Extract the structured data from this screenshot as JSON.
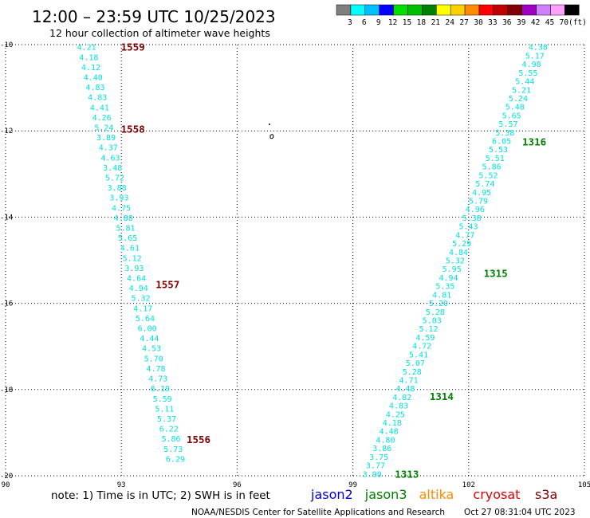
{
  "header": {
    "title": "12:00 – 23:59 UTC 10/25/2023",
    "subtitle": "12 hour collection of altimeter wave heights"
  },
  "legend": {
    "unit": "(ft)",
    "bins": [
      {
        "label": "3",
        "color": "#7f7f7f"
      },
      {
        "label": "6",
        "color": "#00ffff"
      },
      {
        "label": "9",
        "color": "#00bfff"
      },
      {
        "label": "12",
        "color": "#0000ff"
      },
      {
        "label": "15",
        "color": "#00e000"
      },
      {
        "label": "18",
        "color": "#00bf00"
      },
      {
        "label": "21",
        "color": "#008000"
      },
      {
        "label": "24",
        "color": "#ffff00"
      },
      {
        "label": "27",
        "color": "#ffd000"
      },
      {
        "label": "30",
        "color": "#ff8c00"
      },
      {
        "label": "33",
        "color": "#ff0000"
      },
      {
        "label": "36",
        "color": "#c00000"
      },
      {
        "label": "39",
        "color": "#800000"
      },
      {
        "label": "42",
        "color": "#a000c0"
      },
      {
        "label": "45",
        "color": "#d080ff"
      },
      {
        "label": "70",
        "color": "#ffa0ff"
      },
      {
        "label": "",
        "color": "#000000"
      }
    ]
  },
  "footer": {
    "note": "note: 1) Time is in UTC; 2) SWH is in feet",
    "credit": "NOAA/NESDIS Center for Satellite Applications and Research",
    "timestamp": "Oct 27 08:31:04 UTC 2023",
    "satellites": [
      {
        "name": "jason2",
        "color": "#0000dd"
      },
      {
        "name": "jason3",
        "color": "#008000"
      },
      {
        "name": "altika",
        "color": "#ff8c00"
      },
      {
        "name": "cryosat",
        "color": "#e00000"
      },
      {
        "name": "s3a",
        "color": "#800000"
      }
    ]
  },
  "chart_data": {
    "type": "scatter",
    "xlim": [
      90,
      105
    ],
    "ylim": [
      -20,
      -10
    ],
    "x_ticks": [
      "90",
      "93",
      "96",
      "99",
      "102",
      "105"
    ],
    "y_ticks": [
      "-10",
      "-12",
      "-14",
      "-16",
      "-18",
      "-20"
    ],
    "grid": true,
    "value_color": "#00e0e0",
    "tracks": [
      {
        "satellite": "s3a",
        "start": [
          92.1,
          -10.05
        ],
        "end": [
          94.4,
          -19.6
        ],
        "values": [
          "4.21",
          "4.18",
          "4.12",
          "4.40",
          "4.83",
          "4.83",
          "4.41",
          "4.26",
          "5.24",
          "3.89",
          "4.37",
          "4.63",
          "3.48",
          "5.72",
          "3.88",
          "3.93",
          "4.75",
          "4.88",
          "5.81",
          "5.65",
          "4.61",
          "5.12",
          "3.93",
          "4.64",
          "4.94",
          "5.32",
          "4.17",
          "5.64",
          "6.00",
          "4.44",
          "4.53",
          "5.70",
          "4.78",
          "4.73",
          "6.19",
          "5.59",
          "5.11",
          "5.37",
          "6.22",
          "5.86",
          "5.73",
          "6.29"
        ],
        "time_labels": [
          {
            "text": "1559",
            "at": [
              93.3,
              -10.05
            ]
          },
          {
            "text": "1558",
            "at": [
              93.3,
              -11.95
            ]
          },
          {
            "text": "1557",
            "at": [
              94.2,
              -15.55
            ]
          },
          {
            "text": "1556",
            "at": [
              95.0,
              -19.15
            ]
          }
        ]
      },
      {
        "satellite": "jason3",
        "start": [
          103.8,
          -10.05
        ],
        "end": [
          99.5,
          -19.95
        ],
        "values": [
          "4.38",
          "5.17",
          "4.98",
          "5.55",
          "5.44",
          "5.21",
          "5.24",
          "5.48",
          "5.65",
          "5.57",
          "5.38",
          "6.05",
          "5.53",
          "5.51",
          "5.86",
          "5.52",
          "5.74",
          "4.95",
          "5.79",
          "4.96",
          "5.38",
          "5.43",
          "4.77",
          "5.29",
          "4.84",
          "5.32",
          "5.95",
          "4.94",
          "5.35",
          "4.81",
          "5.20",
          "5.28",
          "5.03",
          "5.12",
          "4.59",
          "4.72",
          "5.41",
          "5.07",
          "5.28",
          "4.71",
          "4.48",
          "4.82",
          "4.83",
          "4.25",
          "4.18",
          "4.48",
          "4.80",
          "3.86",
          "3.75",
          "3.77",
          "3.90"
        ],
        "time_labels": [
          {
            "text": "1316",
            "at": [
              103.7,
              -12.25
            ]
          },
          {
            "text": "1315",
            "at": [
              102.7,
              -15.3
            ]
          },
          {
            "text": "1314",
            "at": [
              101.3,
              -18.15
            ]
          },
          {
            "text": "1313",
            "at": [
              100.4,
              -19.95
            ]
          }
        ]
      }
    ]
  }
}
